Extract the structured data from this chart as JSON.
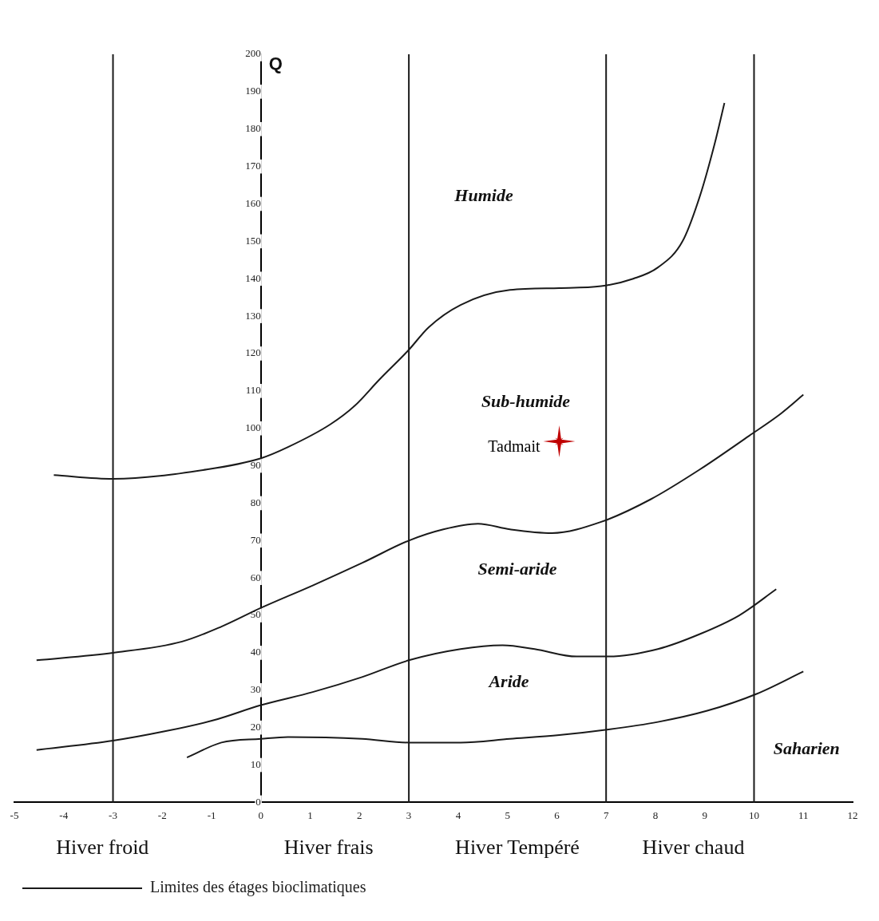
{
  "chart_data": {
    "type": "line",
    "ylabel": "Q",
    "xlim": [
      -5,
      12
    ],
    "ylim": [
      0,
      200
    ],
    "xticks": [
      -5,
      -4,
      -3,
      -2,
      -1,
      0,
      1,
      2,
      3,
      4,
      5,
      6,
      7,
      8,
      9,
      10,
      11,
      12
    ],
    "yticks": [
      0,
      10,
      20,
      30,
      40,
      50,
      60,
      70,
      80,
      90,
      100,
      110,
      120,
      130,
      140,
      150,
      160,
      170,
      180,
      190,
      200
    ],
    "grid": false,
    "legend": "bottom left",
    "marker": "none",
    "line_style": "solid",
    "series": [
      {
        "name": "Limites des étages bioclimatiques",
        "color": "#1a1a1a",
        "x": [
          -4.2,
          -3,
          -1.1,
          0,
          0.55,
          1.4,
          1.9,
          2.4,
          3,
          3.4,
          4.05,
          5.05,
          6.05,
          6.9,
          7.55,
          8.05,
          8.55,
          8.9,
          9.2,
          9.4
        ],
        "values": [
          87.5,
          86.5,
          89,
          92,
          95,
          101,
          106,
          113,
          121,
          127,
          133,
          137,
          137.5,
          138,
          140,
          143,
          150,
          162,
          176,
          187
        ]
      },
      {
        "color": "#1a1a1a",
        "x": [
          -4.55,
          -3,
          -1.6,
          -0.8,
          0,
          1.05,
          2.05,
          3,
          3.7,
          4.4,
          5.05,
          5.9,
          6.9,
          7.9,
          8.9,
          9.9,
          10.55,
          11
        ],
        "values": [
          38,
          40,
          43,
          47,
          52,
          58,
          64,
          70,
          73,
          74.5,
          73,
          72,
          75,
          81,
          89,
          98,
          104,
          109
        ]
      },
      {
        "color": "#1a1a1a",
        "x": [
          -4.55,
          -3,
          -1.95,
          -0.95,
          0,
          1.05,
          2.05,
          3,
          4.05,
          4.9,
          5.55,
          6.4,
          7.05,
          8.05,
          8.9,
          9.7,
          10.45
        ],
        "values": [
          14,
          16.5,
          19,
          22,
          26,
          29.5,
          33.5,
          38,
          41,
          42,
          41,
          39,
          39,
          41,
          45,
          50,
          57
        ]
      },
      {
        "color": "#1a1a1a",
        "x": [
          -1.5,
          -0.8,
          0,
          0.55,
          2.05,
          3,
          4.05,
          5.05,
          6.05,
          7.05,
          8.05,
          9.05,
          10.05,
          11
        ],
        "values": [
          12,
          16,
          17,
          17.5,
          17,
          16,
          16,
          17,
          18,
          19.5,
          21.5,
          24.5,
          29,
          35
        ]
      },
      {
        "type": "scatter",
        "color": "#c00000",
        "marker": "star",
        "x": [
          6.05
        ],
        "values": [
          96.5
        ]
      }
    ],
    "ref_lines": [
      {
        "axis": "x",
        "value": -3,
        "color": "#1a1a1a"
      },
      {
        "axis": "x",
        "value": 3,
        "color": "#1a1a1a"
      },
      {
        "axis": "x",
        "value": 7,
        "color": "#1a1a1a"
      },
      {
        "axis": "x",
        "value": 10,
        "color": "#1a1a1a"
      }
    ],
    "annotations": [
      "Humide",
      "Sub-humide",
      {
        "text": "Tadmait",
        "x": 6.05,
        "y": 96.5
      },
      "Semi-aride",
      "Aride",
      "Saharien",
      "Hiver froid",
      "Hiver frais",
      "Hiver Tempéré",
      "Hiver chaud"
    ]
  }
}
